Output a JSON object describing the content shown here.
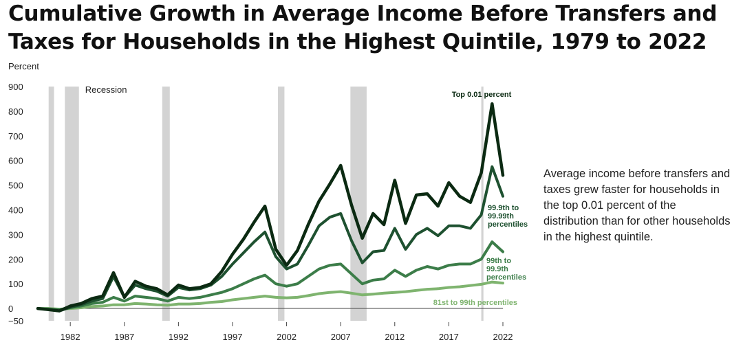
{
  "title": "Cumulative Growth in Average Income Before Transfers and Taxes for Households in the Highest Quintile, 1979 to 2022",
  "side_note": "Average income before transfers and taxes grew faster for households in the top 0.01 percent of the distribution than for other households in the highest quintile.",
  "colors": {
    "top001": "#0b2a12",
    "p999": "#1e5130",
    "p99": "#3c7d49",
    "p81": "#7fb46f",
    "recession": "#d3d3d3",
    "zero_line": "#444444"
  },
  "chart_data": {
    "type": "line",
    "ylabel": "Percent",
    "ylim": [
      -50,
      900
    ],
    "yticks": [
      -50,
      0,
      100,
      200,
      300,
      400,
      500,
      600,
      700,
      800,
      900
    ],
    "xlim": [
      1979,
      2022
    ],
    "xticks": [
      1982,
      1987,
      1992,
      1997,
      2002,
      2007,
      2012,
      2017,
      2022
    ],
    "grid": false,
    "legend": "inline labels at line ends",
    "recession_label": "Recession",
    "recessions": [
      [
        1980.0,
        1980.5
      ],
      [
        1981.5,
        1982.8
      ],
      [
        1990.5,
        1991.2
      ],
      [
        2001.2,
        2001.8
      ],
      [
        2007.9,
        2009.4
      ],
      [
        2020.0,
        2020.2
      ]
    ],
    "x": [
      1979,
      1980,
      1981,
      1982,
      1983,
      1984,
      1985,
      1986,
      1987,
      1988,
      1989,
      1990,
      1991,
      1992,
      1993,
      1994,
      1995,
      1996,
      1997,
      1998,
      1999,
      2000,
      2001,
      2002,
      2003,
      2004,
      2005,
      2006,
      2007,
      2008,
      2009,
      2010,
      2011,
      2012,
      2013,
      2014,
      2015,
      2016,
      2017,
      2018,
      2019,
      2020,
      2021,
      2022
    ],
    "series": [
      {
        "name": "Top 0.01 percent",
        "values": [
          0,
          -5,
          -10,
          10,
          20,
          40,
          50,
          145,
          45,
          110,
          90,
          80,
          55,
          95,
          80,
          85,
          100,
          150,
          220,
          280,
          350,
          415,
          240,
          175,
          235,
          340,
          435,
          505,
          580,
          420,
          285,
          385,
          340,
          520,
          345,
          460,
          465,
          415,
          510,
          455,
          430,
          550,
          830,
          540
        ]
      },
      {
        "name": "99.9th to 99.99th percentiles",
        "values": [
          0,
          -5,
          -10,
          5,
          15,
          30,
          40,
          130,
          45,
          95,
          80,
          70,
          50,
          85,
          75,
          80,
          95,
          130,
          180,
          225,
          270,
          310,
          210,
          160,
          180,
          255,
          335,
          370,
          385,
          275,
          185,
          230,
          235,
          325,
          240,
          300,
          325,
          295,
          335,
          335,
          325,
          380,
          575,
          455
        ]
      },
      {
        "name": "99th to 99.9th percentiles",
        "values": [
          0,
          -2,
          -5,
          3,
          10,
          20,
          25,
          45,
          30,
          50,
          45,
          40,
          30,
          45,
          40,
          45,
          55,
          65,
          80,
          100,
          120,
          135,
          100,
          90,
          100,
          130,
          160,
          175,
          180,
          140,
          100,
          115,
          120,
          155,
          130,
          155,
          170,
          160,
          175,
          180,
          180,
          200,
          270,
          230
        ]
      },
      {
        "name": "81st to 99th percentiles",
        "values": [
          0,
          0,
          -3,
          0,
          3,
          8,
          10,
          15,
          15,
          20,
          18,
          15,
          13,
          18,
          18,
          20,
          25,
          28,
          35,
          40,
          45,
          50,
          45,
          43,
          45,
          52,
          60,
          65,
          68,
          62,
          55,
          58,
          62,
          65,
          68,
          73,
          78,
          80,
          85,
          88,
          93,
          98,
          107,
          103
        ]
      }
    ]
  }
}
